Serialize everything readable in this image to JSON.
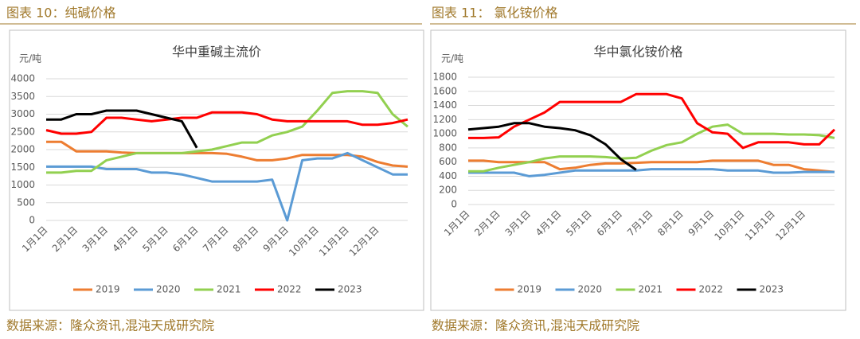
{
  "figures": [
    {
      "caption": "图表 10：纯碱价格",
      "source": "数据来源：隆众资讯,混沌天成研究院"
    },
    {
      "caption": "图表 11：  氯化铵价格",
      "source": "数据来源：隆众资讯,混沌天成研究院"
    }
  ],
  "chart_data": [
    {
      "type": "line",
      "title": "华中重碱主流价",
      "y_label": "元/吨",
      "categories": [
        "1月1日",
        null,
        "2月1日",
        null,
        "3月1日",
        null,
        "4月1日",
        null,
        "5月1日",
        null,
        "6月1日",
        null,
        "7月1日",
        null,
        "8月1日",
        null,
        "9月1日",
        null,
        "10月1日",
        null,
        "11月1日",
        null,
        "12月1日",
        null,
        null
      ],
      "ylim": [
        0,
        4000
      ],
      "yticks": [
        0,
        500,
        1000,
        1500,
        2000,
        2500,
        3000,
        3500,
        4000
      ],
      "grid": true,
      "legend": "bottom",
      "series": [
        {
          "name": "2019",
          "color": "#ED7D31",
          "values": [
            2220,
            2220,
            1950,
            1950,
            1950,
            1920,
            1900,
            1900,
            1900,
            1900,
            1900,
            1900,
            1880,
            1800,
            1700,
            1700,
            1750,
            1850,
            1850,
            1850,
            1850,
            1800,
            1650,
            1550,
            1520
          ]
        },
        {
          "name": "2020",
          "color": "#5B9BD5",
          "values": [
            1520,
            1520,
            1520,
            1520,
            1450,
            1450,
            1450,
            1350,
            1350,
            1300,
            1200,
            1100,
            1100,
            1100,
            1100,
            1150,
            0,
            1700,
            1750,
            1750,
            1900,
            1700,
            1500,
            1300,
            1300
          ]
        },
        {
          "name": "2021",
          "color": "#92D050",
          "values": [
            1350,
            1350,
            1400,
            1400,
            1700,
            1800,
            1900,
            1900,
            1900,
            1900,
            1950,
            2000,
            2100,
            2200,
            2200,
            2400,
            2500,
            2650,
            3100,
            3600,
            3650,
            3650,
            3600,
            3000,
            2650
          ]
        },
        {
          "name": "2022",
          "color": "#FF0000",
          "values": [
            2550,
            2450,
            2450,
            2500,
            2900,
            2900,
            2850,
            2800,
            2850,
            2900,
            2900,
            3050,
            3050,
            3050,
            3000,
            2850,
            2800,
            2800,
            2800,
            2800,
            2800,
            2700,
            2700,
            2750,
            2850
          ]
        },
        {
          "name": "2023",
          "color": "#000000",
          "values": [
            2850,
            2850,
            3000,
            3000,
            3100,
            3100,
            3100,
            3000,
            2900,
            2800,
            2050,
            null,
            null,
            null,
            null,
            null,
            null,
            null,
            null,
            null,
            null,
            null,
            null,
            null,
            null
          ]
        }
      ]
    },
    {
      "type": "line",
      "title": "华中氯化铵价格",
      "y_label": "元/吨",
      "categories": [
        "1月1日",
        null,
        "2月1日",
        null,
        "3月1日",
        null,
        "4月1日",
        null,
        "5月1日",
        null,
        "6月1日",
        null,
        "7月1日",
        null,
        "8月1日",
        null,
        "9月1日",
        null,
        "10月1日",
        null,
        "11月1日",
        null,
        "12月1日",
        null,
        null
      ],
      "ylim": [
        0,
        1800
      ],
      "yticks": [
        0,
        200,
        400,
        600,
        800,
        1000,
        1200,
        1400,
        1600,
        1800
      ],
      "grid": true,
      "legend": "bottom",
      "series": [
        {
          "name": "2019",
          "color": "#ED7D31",
          "values": [
            620,
            620,
            600,
            600,
            600,
            600,
            500,
            520,
            560,
            580,
            580,
            590,
            600,
            600,
            600,
            600,
            620,
            620,
            620,
            620,
            560,
            560,
            500,
            480,
            460
          ]
        },
        {
          "name": "2020",
          "color": "#5B9BD5",
          "values": [
            450,
            450,
            450,
            450,
            400,
            420,
            450,
            480,
            480,
            480,
            480,
            480,
            500,
            500,
            500,
            500,
            500,
            480,
            480,
            480,
            450,
            450,
            460,
            460,
            460
          ]
        },
        {
          "name": "2021",
          "color": "#92D050",
          "values": [
            470,
            470,
            520,
            560,
            600,
            650,
            680,
            680,
            680,
            670,
            650,
            660,
            760,
            840,
            880,
            1000,
            1100,
            1130,
            1000,
            1000,
            1000,
            990,
            990,
            980,
            940
          ]
        },
        {
          "name": "2022",
          "color": "#FF0000",
          "values": [
            940,
            940,
            950,
            1100,
            1200,
            1300,
            1450,
            1450,
            1450,
            1450,
            1450,
            1560,
            1560,
            1560,
            1500,
            1150,
            1020,
            1000,
            800,
            880,
            880,
            880,
            850,
            850,
            1060
          ]
        },
        {
          "name": "2023",
          "color": "#000000",
          "values": [
            1060,
            1080,
            1100,
            1150,
            1150,
            1100,
            1080,
            1050,
            980,
            850,
            640,
            490,
            null,
            null,
            null,
            null,
            null,
            null,
            null,
            null,
            null,
            null,
            null,
            null,
            null
          ]
        }
      ]
    }
  ]
}
